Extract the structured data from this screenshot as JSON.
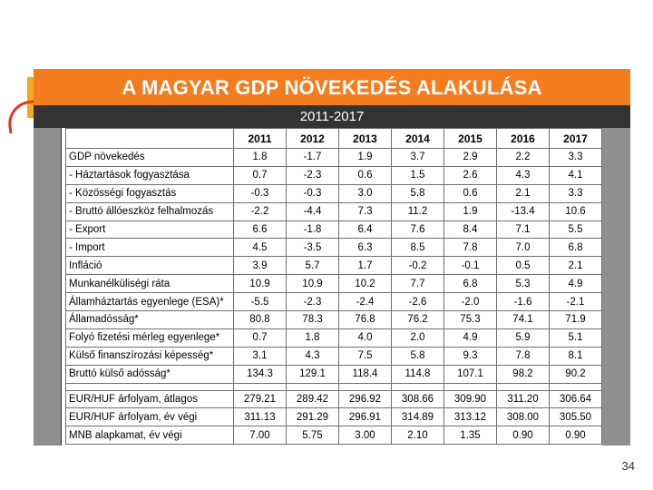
{
  "slide": {
    "title": "A MAGYAR GDP NÖVEKEDÉS ALAKULÁSA",
    "subtitle": "2011-2017",
    "page_number": "34",
    "colors": {
      "title_bar": "#f47d20",
      "subtitle_bar": "#333333"
    }
  },
  "table": {
    "years": [
      "2011",
      "2012",
      "2013",
      "2014",
      "2015",
      "2016",
      "2017"
    ],
    "rows": [
      {
        "label": "GDP növekedés",
        "values": [
          "1.8",
          "-1.7",
          "1.9",
          "3.7",
          "2.9",
          "2.2",
          "3.3"
        ]
      },
      {
        "label": "- Háztartások fogyasztása",
        "values": [
          "0.7",
          "-2.3",
          "0.6",
          "1.5",
          "2.6",
          "4.3",
          "4.1"
        ]
      },
      {
        "label": "- Közösségi fogyasztás",
        "values": [
          "-0.3",
          "-0.3",
          "3.0",
          "5.8",
          "0.6",
          "2.1",
          "3.3"
        ]
      },
      {
        "label": "- Bruttó állóeszköz felhalmozás",
        "values": [
          "-2.2",
          "-4.4",
          "7.3",
          "11.2",
          "1.9",
          "-13.4",
          "10.6"
        ]
      },
      {
        "label": "- Export",
        "values": [
          "6.6",
          "-1.8",
          "6.4",
          "7.6",
          "8.4",
          "7.1",
          "5.5"
        ]
      },
      {
        "label": "- Import",
        "values": [
          "4.5",
          "-3.5",
          "6.3",
          "8.5",
          "7.8",
          "7.0",
          "6.8"
        ]
      },
      {
        "label": "Infláció",
        "values": [
          "3.9",
          "5.7",
          "1.7",
          "-0.2",
          "-0.1",
          "0.5",
          "2.1"
        ]
      },
      {
        "label": "Munkanélküliségi ráta",
        "values": [
          "10.9",
          "10.9",
          "10.2",
          "7.7",
          "6.8",
          "5.3",
          "4.9"
        ]
      },
      {
        "label": "Államháztartás egyenlege (ESA)*",
        "values": [
          "-5.5",
          "-2.3",
          "-2.4",
          "-2.6",
          "-2.0",
          "-1.6",
          "-2.1"
        ]
      },
      {
        "label": "Államadósság*",
        "values": [
          "80.8",
          "78.3",
          "76.8",
          "76.2",
          "75.3",
          "74.1",
          "71.9"
        ]
      },
      {
        "label": "Folyó fizetési mérleg egyenlege*",
        "values": [
          "0.7",
          "1.8",
          "4.0",
          "2.0",
          "4.9",
          "5.9",
          "5.1"
        ]
      },
      {
        "label": "Külső finanszírozási képesség*",
        "values": [
          "3.1",
          "4.3",
          "7.5",
          "5.8",
          "9.3",
          "7.8",
          "8.1"
        ]
      },
      {
        "label": "Bruttó külső adósság*",
        "values": [
          "134.3",
          "129.1",
          "118.4",
          "114.8",
          "107.1",
          "98.2",
          "90.2"
        ]
      }
    ],
    "rows2": [
      {
        "label": "EUR/HUF árfolyam, átlagos",
        "values": [
          "279.21",
          "289.42",
          "296.92",
          "308.66",
          "309.90",
          "311.20",
          "306.64"
        ]
      },
      {
        "label": "EUR/HUF árfolyam, év végi",
        "values": [
          "311.13",
          "291.29",
          "296.91",
          "314.89",
          "313.12",
          "308.00",
          "305.50"
        ]
      },
      {
        "label": "MNB alapkamat, év végi",
        "values": [
          "7.00",
          "5.75",
          "3.00",
          "2.10",
          "1.35",
          "0.90",
          "0.90"
        ]
      }
    ]
  }
}
